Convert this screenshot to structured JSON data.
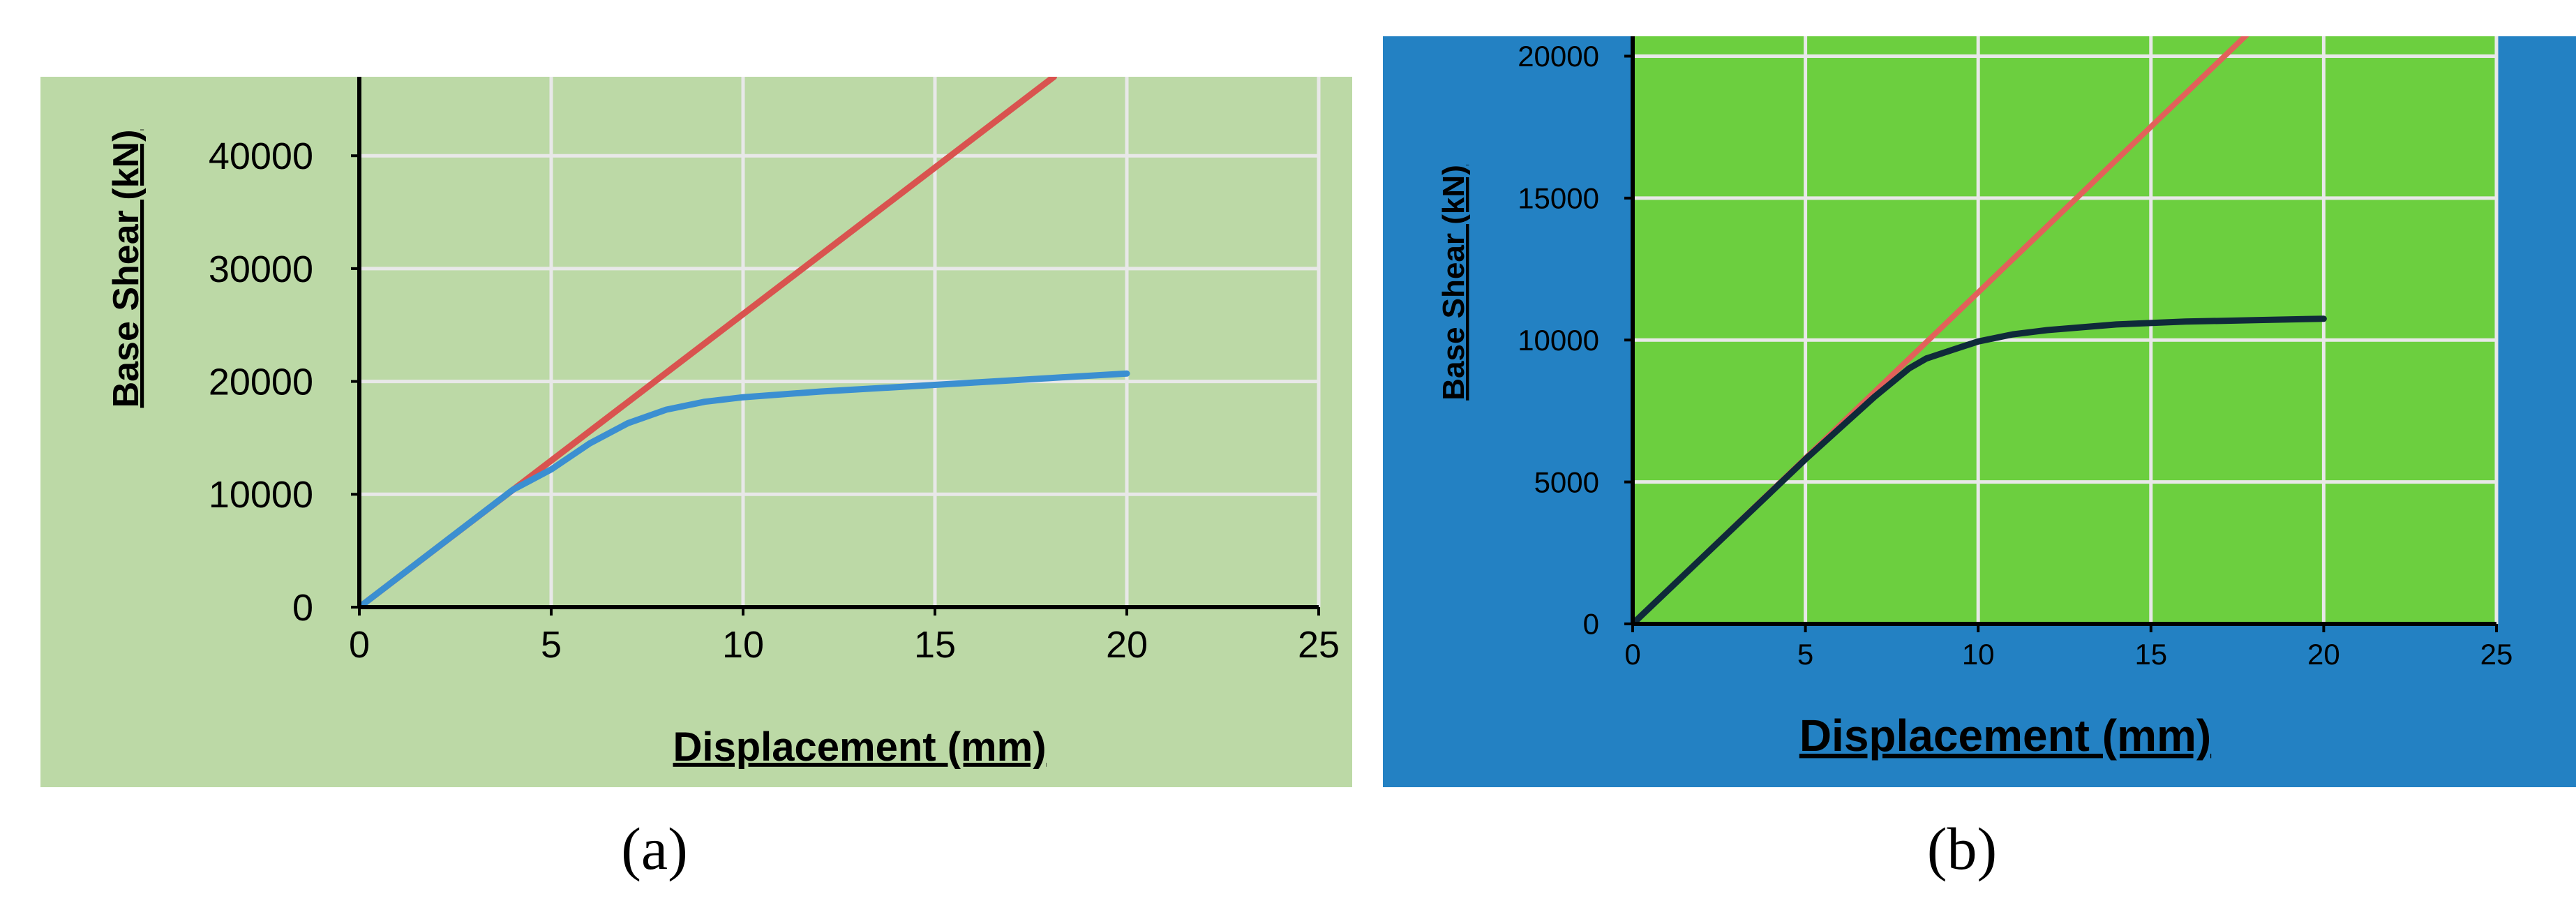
{
  "chart_data": [
    {
      "type": "line",
      "panel_label": "(a)",
      "xlabel": "Displacement (mm)",
      "ylabel": "Base Shear  (kN)",
      "xlim": [
        0,
        25
      ],
      "ylim": [
        0,
        47000
      ],
      "x_ticks": [
        "0",
        "5",
        "10",
        "15",
        "20",
        "25"
      ],
      "y_ticks": [
        "0",
        "10000",
        "20000",
        "30000",
        "40000"
      ],
      "grid": true,
      "legend": "none",
      "background_color": "#bcd9a6",
      "grid_color": "#e8e8e8",
      "series": [
        {
          "color": "#d9534f",
          "x": [
            0,
            18.1
          ],
          "y": [
            0,
            47000
          ]
        },
        {
          "color": "#3b8fd1",
          "x": [
            0,
            4,
            5,
            6,
            7,
            8,
            9,
            10,
            12,
            14,
            16,
            18,
            20
          ],
          "y": [
            0,
            10400,
            12200,
            14500,
            16300,
            17500,
            18200,
            18600,
            19100,
            19500,
            19900,
            20300,
            20700
          ]
        }
      ]
    },
    {
      "type": "line",
      "panel_label": "(b)",
      "xlabel": "Displacement (mm)",
      "ylabel": "Base Shear  (kN)",
      "xlim": [
        0,
        25
      ],
      "ylim": [
        0,
        20700
      ],
      "x_ticks": [
        "0",
        "5",
        "10",
        "15",
        "20",
        "25"
      ],
      "y_ticks": [
        "0",
        "5000",
        "10000",
        "15000",
        "20000"
      ],
      "grid": true,
      "legend": "none",
      "background_color": "#6ccf3f",
      "outer_color": "#2381c3",
      "grid_color": "#e8e8e8",
      "series": [
        {
          "color": "#e2615a",
          "x": [
            0,
            18.5
          ],
          "y": [
            0,
            21600
          ]
        },
        {
          "color": "#0f2a3a",
          "x": [
            0,
            5,
            6,
            7,
            8,
            8.5,
            9,
            10,
            11,
            12,
            14,
            16,
            18,
            20
          ],
          "y": [
            0,
            5800,
            6900,
            8000,
            9000,
            9350,
            9550,
            9950,
            10200,
            10350,
            10550,
            10650,
            10700,
            10750
          ]
        }
      ]
    }
  ]
}
